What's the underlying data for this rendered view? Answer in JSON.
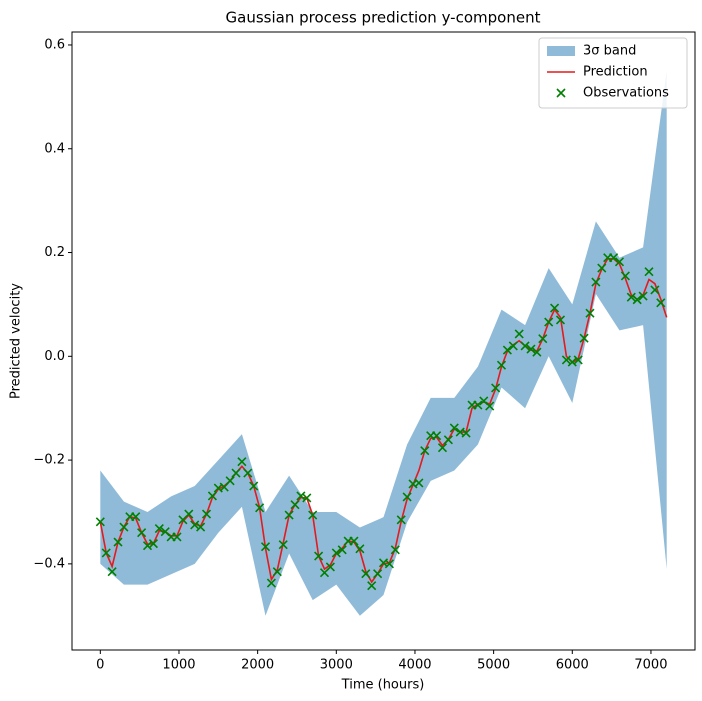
{
  "chart_data": {
    "type": "line",
    "title": "Gaussian process prediction y-component",
    "x_label": "Time (hours)",
    "y_label": "Predicted velocity",
    "xlim": [
      -360,
      7560
    ],
    "ylim": [
      -0.566,
      0.625
    ],
    "xticks": [
      0,
      1000,
      2000,
      3000,
      4000,
      5000,
      6000,
      7000
    ],
    "yticks": [
      {
        "value": -0.4,
        "label": "−0.4"
      },
      {
        "value": -0.2,
        "label": "−0.2"
      },
      {
        "value": 0,
        "label": "0.0"
      },
      0.2,
      0.4,
      0.6
    ],
    "grid": false,
    "legend": "upper right",
    "series": [
      {
        "name": "3σ band",
        "type": "band",
        "color": "#1f77b4",
        "opacity": 0.5,
        "x": [
          0,
          300,
          600,
          900,
          1200,
          1500,
          1800,
          2100,
          2400,
          2700,
          3000,
          3300,
          3600,
          3900,
          4200,
          4500,
          4800,
          5100,
          5400,
          5700,
          6000,
          6300,
          6600,
          6900,
          7200
        ],
        "upper": [
          -0.22,
          -0.28,
          -0.3,
          -0.27,
          -0.25,
          -0.2,
          -0.15,
          -0.3,
          -0.23,
          -0.3,
          -0.3,
          -0.33,
          -0.31,
          -0.17,
          -0.08,
          -0.08,
          -0.02,
          0.09,
          0.06,
          0.17,
          0.1,
          0.26,
          0.19,
          0.21,
          0.55
        ],
        "lower": [
          -0.4,
          -0.44,
          -0.44,
          -0.42,
          -0.4,
          -0.34,
          -0.29,
          -0.5,
          -0.38,
          -0.47,
          -0.44,
          -0.5,
          -0.46,
          -0.32,
          -0.24,
          -0.22,
          -0.17,
          -0.06,
          -0.1,
          0.0,
          -0.09,
          0.12,
          0.05,
          0.06,
          -0.41
        ]
      },
      {
        "name": "Prediction",
        "type": "line",
        "color": "#e41a1c",
        "x": [
          0,
          75,
          150,
          225,
          300,
          375,
          450,
          525,
          600,
          675,
          750,
          825,
          900,
          975,
          1050,
          1125,
          1200,
          1275,
          1350,
          1425,
          1500,
          1575,
          1650,
          1725,
          1800,
          1875,
          1950,
          2025,
          2100,
          2175,
          2250,
          2325,
          2400,
          2475,
          2550,
          2625,
          2700,
          2775,
          2850,
          2925,
          3000,
          3075,
          3150,
          3225,
          3300,
          3375,
          3450,
          3525,
          3600,
          3675,
          3750,
          3825,
          3900,
          3975,
          4050,
          4125,
          4200,
          4275,
          4350,
          4425,
          4500,
          4575,
          4650,
          4725,
          4800,
          4875,
          4950,
          5025,
          5100,
          5175,
          5250,
          5325,
          5400,
          5475,
          5550,
          5625,
          5700,
          5775,
          5850,
          5925,
          6000,
          6075,
          6150,
          6225,
          6300,
          6375,
          6450,
          6525,
          6600,
          6675,
          6750,
          6825,
          6900,
          6975,
          7050,
          7125,
          7200
        ],
        "values": [
          -0.319,
          -0.379,
          -0.405,
          -0.358,
          -0.329,
          -0.309,
          -0.312,
          -0.34,
          -0.362,
          -0.361,
          -0.336,
          -0.338,
          -0.346,
          -0.346,
          -0.318,
          -0.306,
          -0.323,
          -0.327,
          -0.304,
          -0.272,
          -0.256,
          -0.25,
          -0.24,
          -0.225,
          -0.212,
          -0.225,
          -0.25,
          -0.292,
          -0.37,
          -0.43,
          -0.412,
          -0.36,
          -0.306,
          -0.286,
          -0.272,
          -0.273,
          -0.306,
          -0.385,
          -0.41,
          -0.402,
          -0.38,
          -0.37,
          -0.356,
          -0.358,
          -0.375,
          -0.415,
          -0.435,
          -0.419,
          -0.4,
          -0.398,
          -0.37,
          -0.318,
          -0.275,
          -0.248,
          -0.22,
          -0.182,
          -0.158,
          -0.156,
          -0.172,
          -0.16,
          -0.14,
          -0.146,
          -0.146,
          -0.1,
          -0.092,
          -0.088,
          -0.092,
          -0.063,
          -0.02,
          0.01,
          0.022,
          0.03,
          0.02,
          0.012,
          0.01,
          0.034,
          0.066,
          0.09,
          0.075,
          0.0,
          -0.012,
          -0.005,
          0.035,
          0.083,
          0.14,
          0.168,
          0.188,
          0.188,
          0.178,
          0.15,
          0.118,
          0.11,
          0.118,
          0.148,
          0.14,
          0.11,
          0.075
        ]
      },
      {
        "name": "Observations",
        "type": "scatter",
        "marker": "x",
        "color": "#008000",
        "x": [
          0,
          75,
          150,
          225,
          300,
          375,
          450,
          525,
          600,
          675,
          750,
          825,
          900,
          975,
          1050,
          1125,
          1200,
          1275,
          1350,
          1425,
          1500,
          1575,
          1650,
          1725,
          1800,
          1875,
          1950,
          2025,
          2100,
          2175,
          2250,
          2325,
          2400,
          2475,
          2550,
          2625,
          2700,
          2775,
          2850,
          2925,
          3000,
          3075,
          3150,
          3225,
          3300,
          3375,
          3450,
          3525,
          3600,
          3675,
          3750,
          3825,
          3900,
          3975,
          4050,
          4125,
          4200,
          4275,
          4350,
          4425,
          4500,
          4575,
          4650,
          4725,
          4800,
          4875,
          4950,
          5025,
          5100,
          5175,
          5250,
          5325,
          5400,
          5475,
          5550,
          5625,
          5700,
          5775,
          5850,
          5925,
          6000,
          6075,
          6150,
          6225,
          6300,
          6375,
          6450,
          6525,
          6600,
          6675,
          6750,
          6825,
          6900,
          6975,
          7050,
          7125
        ],
        "values": [
          -0.319,
          -0.379,
          -0.415,
          -0.358,
          -0.329,
          -0.309,
          -0.309,
          -0.34,
          -0.365,
          -0.361,
          -0.332,
          -0.338,
          -0.348,
          -0.348,
          -0.315,
          -0.304,
          -0.325,
          -0.329,
          -0.304,
          -0.269,
          -0.254,
          -0.252,
          -0.24,
          -0.225,
          -0.203,
          -0.225,
          -0.25,
          -0.292,
          -0.367,
          -0.437,
          -0.415,
          -0.363,
          -0.306,
          -0.286,
          -0.269,
          -0.273,
          -0.306,
          -0.385,
          -0.417,
          -0.406,
          -0.379,
          -0.373,
          -0.356,
          -0.356,
          -0.371,
          -0.419,
          -0.442,
          -0.419,
          -0.398,
          -0.4,
          -0.373,
          -0.315,
          -0.271,
          -0.246,
          -0.244,
          -0.182,
          -0.153,
          -0.153,
          -0.176,
          -0.161,
          -0.138,
          -0.146,
          -0.148,
          -0.094,
          -0.094,
          -0.086,
          -0.096,
          -0.061,
          -0.017,
          0.012,
          0.02,
          0.043,
          0.02,
          0.014,
          0.008,
          0.034,
          0.066,
          0.093,
          0.07,
          -0.007,
          -0.011,
          -0.007,
          0.035,
          0.083,
          0.143,
          0.17,
          0.19,
          0.19,
          0.182,
          0.155,
          0.114,
          0.109,
          0.116,
          0.163,
          0.128,
          0.103
        ]
      }
    ]
  }
}
